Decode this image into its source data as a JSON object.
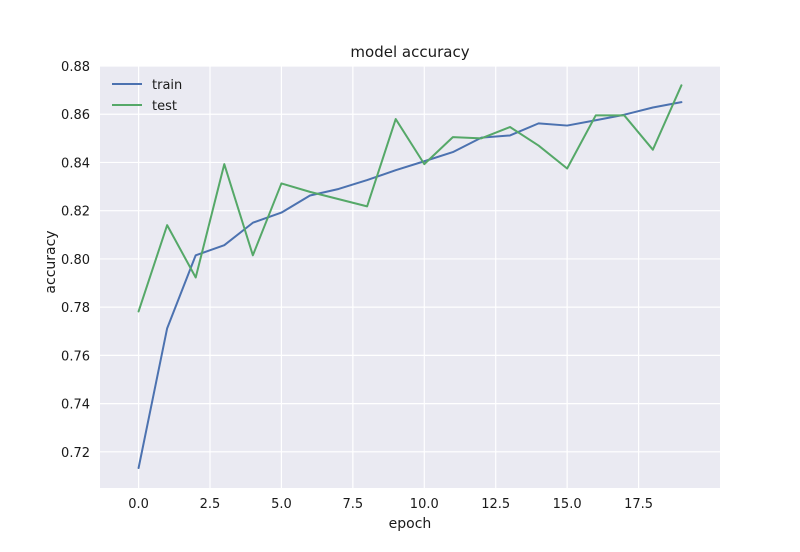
{
  "chart_data": {
    "type": "line",
    "title": "model accuracy",
    "xlabel": "epoch",
    "ylabel": "accuracy",
    "xlim": [
      -1.35,
      20.35
    ],
    "ylim": [
      0.705,
      0.88
    ],
    "xticks": [
      0.0,
      2.5,
      5.0,
      7.5,
      10.0,
      12.5,
      15.0,
      17.5
    ],
    "xtick_labels": [
      "0.0",
      "2.5",
      "5.0",
      "7.5",
      "10.0",
      "12.5",
      "15.0",
      "17.5"
    ],
    "yticks": [
      0.72,
      0.74,
      0.76,
      0.78,
      0.8,
      0.82,
      0.84,
      0.86,
      0.88
    ],
    "ytick_labels": [
      "0.72",
      "0.74",
      "0.76",
      "0.78",
      "0.80",
      "0.82",
      "0.84",
      "0.86",
      "0.88"
    ],
    "grid": true,
    "legend_position": "top-left",
    "x": [
      0,
      1,
      2,
      3,
      4,
      5,
      6,
      7,
      8,
      9,
      10,
      11,
      12,
      13,
      14,
      15,
      16,
      17,
      18,
      19
    ],
    "series": [
      {
        "name": "train",
        "color": "#4c72b0",
        "values": [
          0.7133,
          0.7712,
          0.8015,
          0.8057,
          0.815,
          0.8192,
          0.8263,
          0.829,
          0.8327,
          0.8368,
          0.8405,
          0.8443,
          0.8503,
          0.8512,
          0.8562,
          0.8553,
          0.8575,
          0.8598,
          0.8628,
          0.865
        ]
      },
      {
        "name": "test",
        "color": "#55a868",
        "values": [
          0.7782,
          0.814,
          0.7923,
          0.8393,
          0.8015,
          0.8313,
          0.8278,
          0.8248,
          0.8218,
          0.858,
          0.8393,
          0.8505,
          0.85,
          0.8547,
          0.847,
          0.8375,
          0.8595,
          0.8595,
          0.8453,
          0.872
        ]
      }
    ]
  }
}
